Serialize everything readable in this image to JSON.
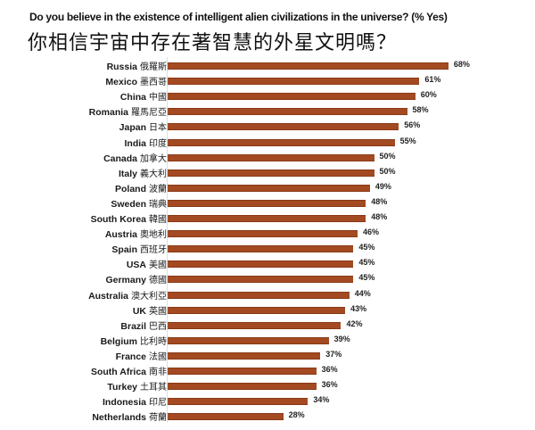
{
  "chart_data": {
    "type": "bar",
    "orientation": "horizontal",
    "title": "Do you believe in the existence of intelligent alien civilizations in the universe? (% Yes)",
    "subtitle": "你相信宇宙中存在著智慧的外星文明嗎？",
    "xlabel": "",
    "ylabel": "",
    "xlim": [
      0,
      70
    ],
    "grid": false,
    "legend": null,
    "bar_color": "#a34a22",
    "value_suffix": "%",
    "categories": [
      {
        "en": "Russia",
        "zh": "俄羅斯"
      },
      {
        "en": "Mexico",
        "zh": "墨西哥"
      },
      {
        "en": "China",
        "zh": "中國"
      },
      {
        "en": "Romania",
        "zh": "羅馬尼亞"
      },
      {
        "en": "Japan",
        "zh": "日本"
      },
      {
        "en": "India",
        "zh": "印度"
      },
      {
        "en": "Canada",
        "zh": "加拿大"
      },
      {
        "en": "Italy",
        "zh": "義大利"
      },
      {
        "en": "Poland",
        "zh": "波蘭"
      },
      {
        "en": "Sweden",
        "zh": "瑞典"
      },
      {
        "en": "South Korea",
        "zh": "韓國"
      },
      {
        "en": "Austria",
        "zh": "奧地利"
      },
      {
        "en": "Spain",
        "zh": "西班牙"
      },
      {
        "en": "USA",
        "zh": "美國"
      },
      {
        "en": "Germany",
        "zh": "德國"
      },
      {
        "en": "Australia",
        "zh": "澳大利亞"
      },
      {
        "en": "UK",
        "zh": "英國"
      },
      {
        "en": "Brazil",
        "zh": "巴西"
      },
      {
        "en": "Belgium",
        "zh": "比利時"
      },
      {
        "en": "France",
        "zh": "法國"
      },
      {
        "en": "South Africa",
        "zh": "南非"
      },
      {
        "en": "Turkey",
        "zh": "土耳其"
      },
      {
        "en": "Indonesia",
        "zh": "印尼"
      },
      {
        "en": "Netherlands",
        "zh": "荷蘭"
      }
    ],
    "values": [
      68,
      61,
      60,
      58,
      56,
      55,
      50,
      50,
      49,
      48,
      48,
      46,
      45,
      45,
      45,
      44,
      43,
      42,
      39,
      37,
      36,
      36,
      34,
      28
    ],
    "value_labels": [
      "68%",
      "61%",
      "60%",
      "58%",
      "56%",
      "55%",
      "50%",
      "50%",
      "49%",
      "48%",
      "48%",
      "46%",
      "45%",
      "45%",
      "45%",
      "44%",
      "43%",
      "42%",
      "39%",
      "37%",
      "36%",
      "36%",
      "34%",
      "28%"
    ]
  }
}
